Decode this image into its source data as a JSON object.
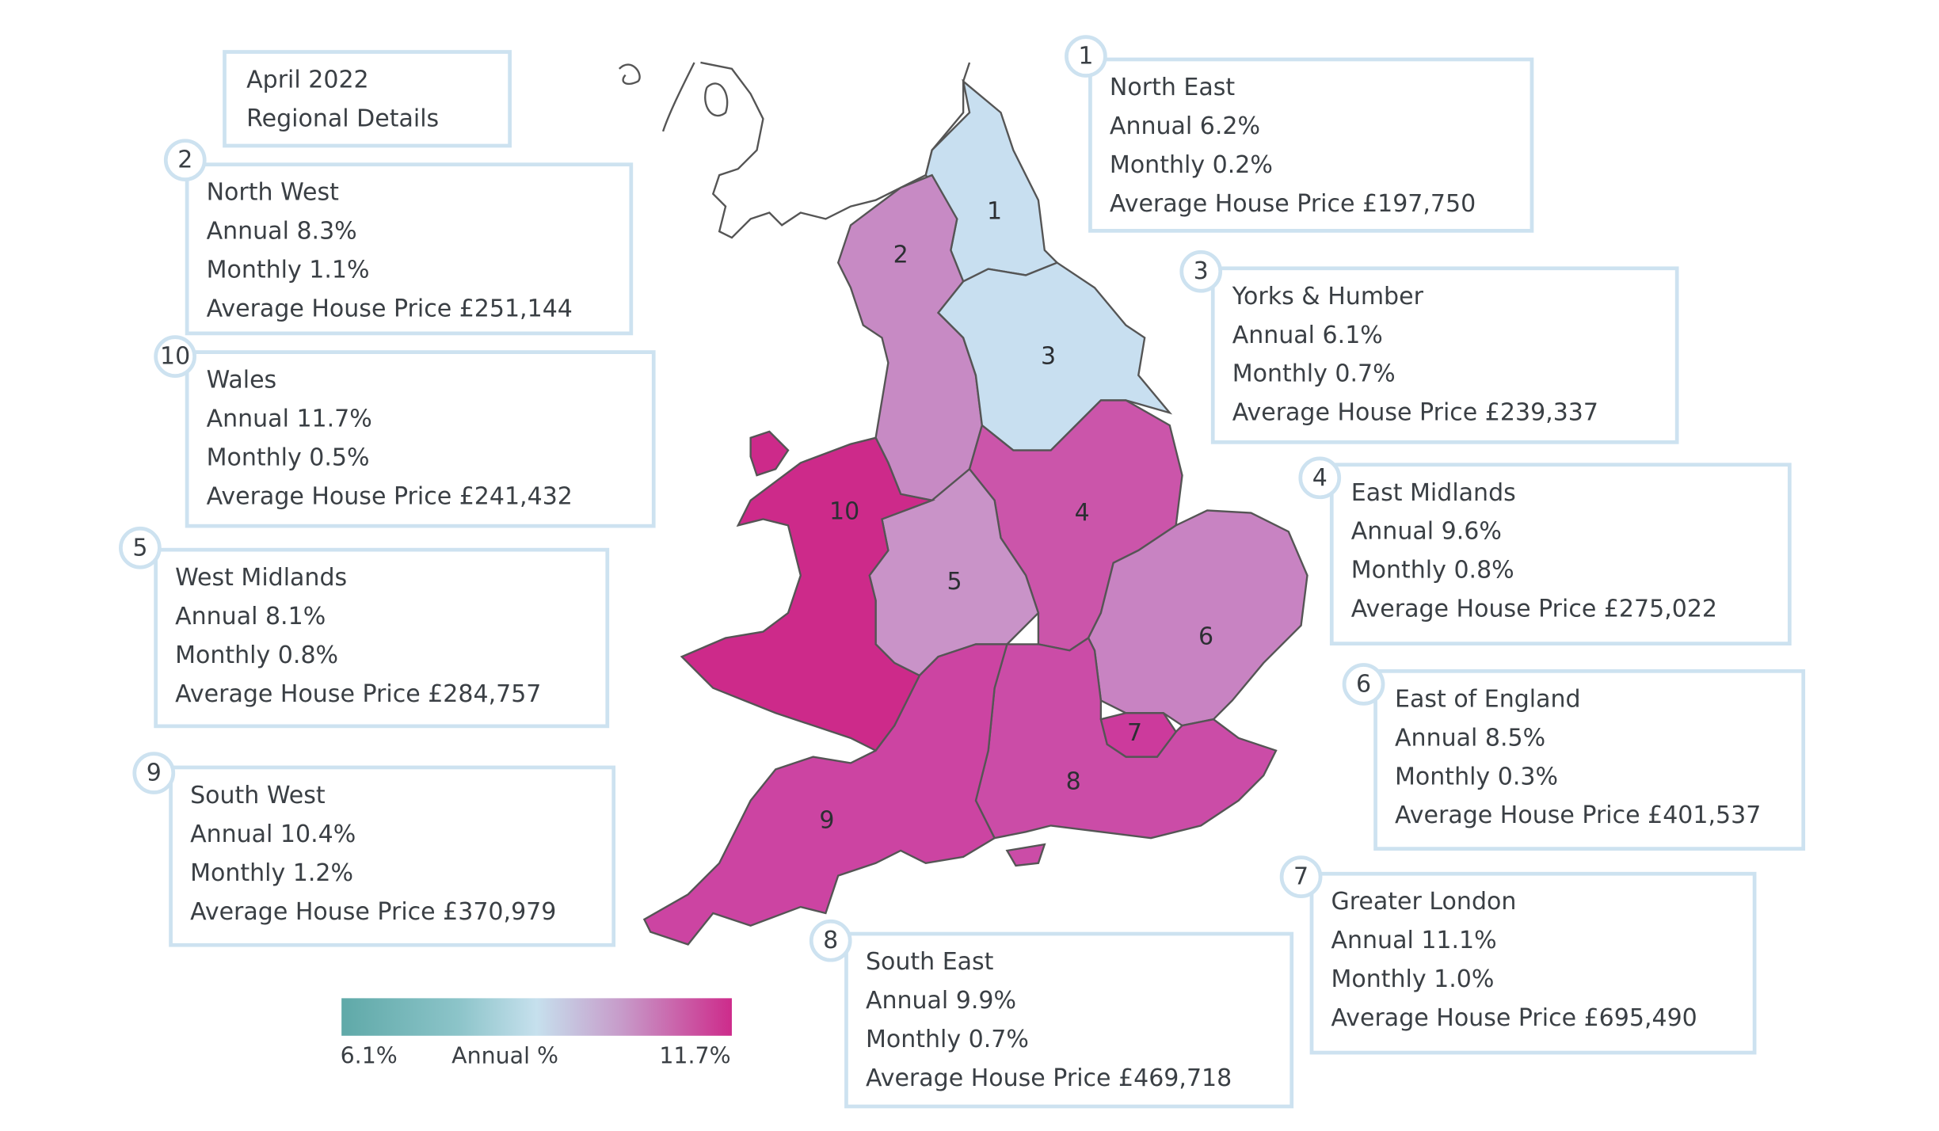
{
  "chart_data": {
    "type": "choropleth",
    "title": "April 2022",
    "subtitle": "Regional Details",
    "legend": {
      "label": "Annual %",
      "min_label": "6.1%",
      "max_label": "11.7%",
      "min": 6.1,
      "max": 11.7,
      "colors": [
        "#5fa9a8",
        "#c6e0ed",
        "#cd2b8b"
      ]
    },
    "regions": [
      {
        "id": "1",
        "name": "North East",
        "annual_label": "Annual 6.2%",
        "monthly_label": "Monthly 0.2%",
        "price_label": "Average House Price £197,750",
        "annual": 6.2,
        "monthly": 0.2,
        "price": 197750,
        "color": "#c8dff0"
      },
      {
        "id": "2",
        "name": "North West",
        "annual_label": "Annual 8.3%",
        "monthly_label": "Monthly 1.1%",
        "price_label": "Average House Price £251,144",
        "annual": 8.3,
        "monthly": 1.1,
        "price": 251144,
        "color": "#c78ac4"
      },
      {
        "id": "3",
        "name": "Yorks & Humber",
        "annual_label": "Annual 6.1%",
        "monthly_label": "Monthly 0.7%",
        "price_label": "Average House Price £239,337",
        "annual": 6.1,
        "monthly": 0.7,
        "price": 239337,
        "color": "#c8dff0"
      },
      {
        "id": "4",
        "name": "East Midlands",
        "annual_label": "Annual 9.6%",
        "monthly_label": "Monthly 0.8%",
        "price_label": "Average House Price £275,022",
        "annual": 9.6,
        "monthly": 0.8,
        "price": 275022,
        "color": "#cb55aa"
      },
      {
        "id": "5",
        "name": "West Midlands",
        "annual_label": "Annual 8.1%",
        "monthly_label": "Monthly 0.8%",
        "price_label": "Average House Price £284,757",
        "annual": 8.1,
        "monthly": 0.8,
        "price": 284757,
        "color": "#c993c8"
      },
      {
        "id": "6",
        "name": "East of England",
        "annual_label": "Annual 8.5%",
        "monthly_label": "Monthly 0.3%",
        "price_label": "Average House Price £401,537",
        "annual": 8.5,
        "monthly": 0.3,
        "price": 401537,
        "color": "#c883c2"
      },
      {
        "id": "7",
        "name": "Greater London",
        "annual_label": "Annual 11.1%",
        "monthly_label": "Monthly 1.0%",
        "price_label": "Average House Price £695,490",
        "annual": 11.1,
        "monthly": 1.0,
        "price": 695490,
        "color": "#cc3a9c"
      },
      {
        "id": "8",
        "name": "South East",
        "annual_label": "Annual 9.9%",
        "monthly_label": "Monthly 0.7%",
        "price_label": "Average House Price £469,718",
        "annual": 9.9,
        "monthly": 0.7,
        "price": 469718,
        "color": "#cb4ca7"
      },
      {
        "id": "9",
        "name": "South West",
        "annual_label": "Annual 10.4%",
        "monthly_label": "Monthly 1.2%",
        "price_label": "Average House Price £370,979",
        "annual": 10.4,
        "monthly": 1.2,
        "price": 370979,
        "color": "#cc44a2"
      },
      {
        "id": "10",
        "name": "Wales",
        "annual_label": "Annual 11.7%",
        "monthly_label": "Monthly 0.5%",
        "price_label": "Average House Price £241,432",
        "annual": 11.7,
        "monthly": 0.5,
        "price": 241432,
        "color": "#cd2a8a"
      }
    ]
  }
}
